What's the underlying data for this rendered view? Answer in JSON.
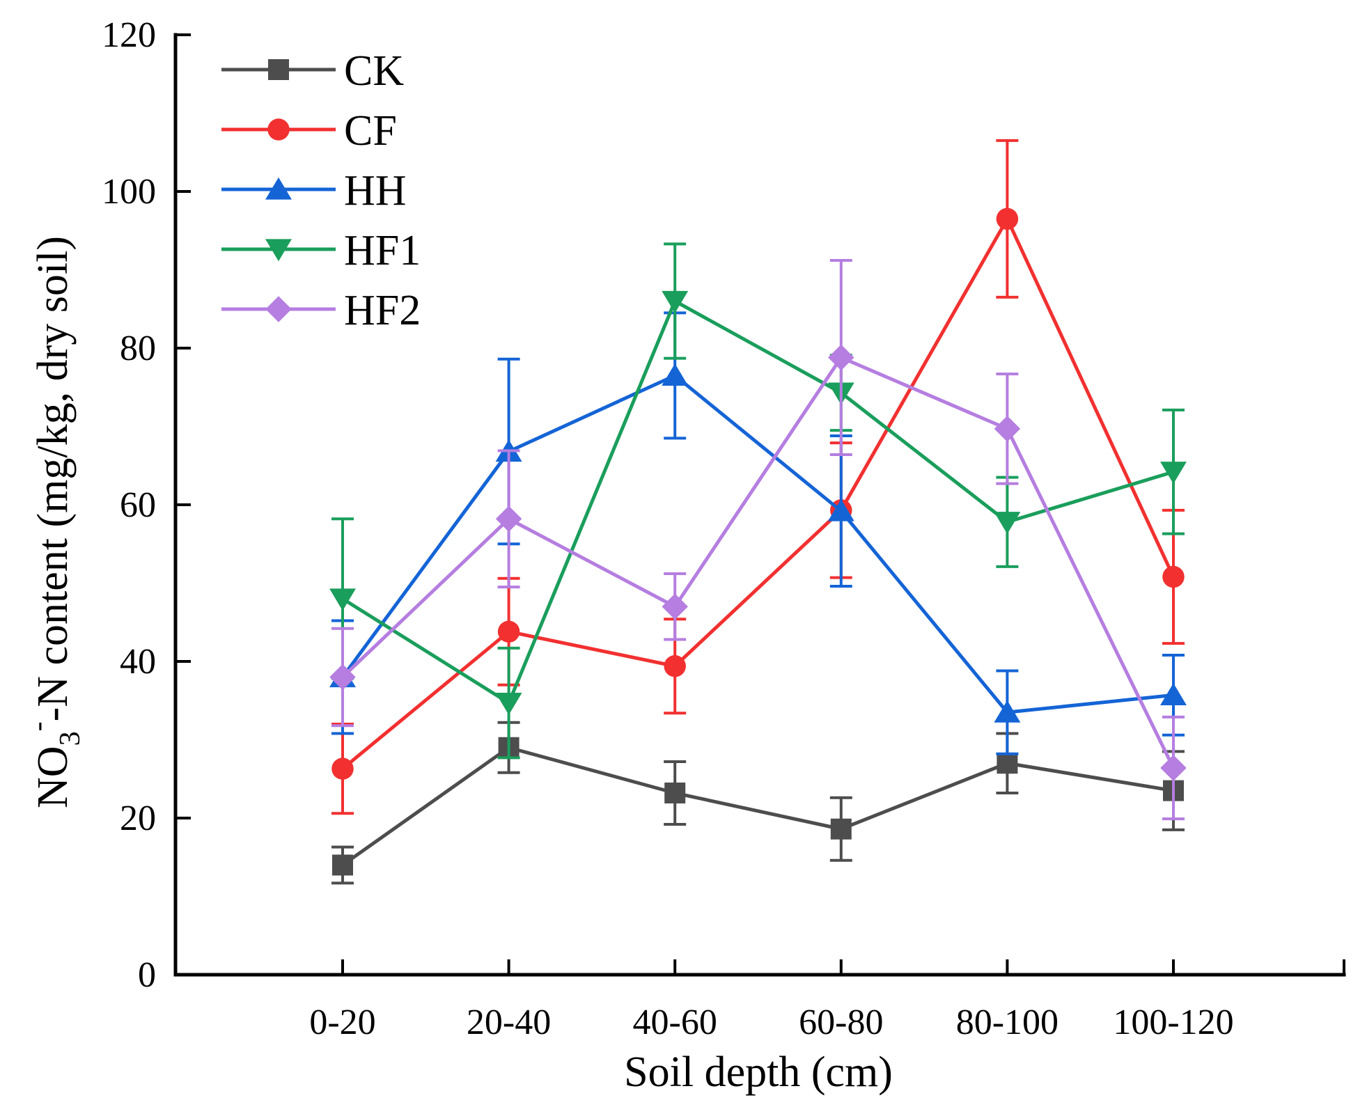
{
  "chart_data": {
    "type": "line",
    "title": "",
    "xlabel": "Soil depth (cm)",
    "ylabel": {
      "main": "NO",
      "subscript": "3",
      "superscript": "-",
      "rest": "-N content (mg/kg, dry soil)"
    },
    "categories": [
      "0-20",
      "20-40",
      "40-60",
      "60-80",
      "80-100",
      "100-120"
    ],
    "ylim": [
      0,
      120
    ],
    "yticks": [
      0,
      20,
      40,
      60,
      80,
      100,
      120
    ],
    "legend_position": "top-left",
    "series": [
      {
        "name": "CK",
        "color": "#4d4d4d",
        "marker": "square",
        "values": [
          14,
          29,
          23.2,
          18.6,
          27,
          23.5
        ],
        "errors": [
          2.3,
          3.2,
          4,
          4,
          3.8,
          5
        ]
      },
      {
        "name": "CF",
        "color": "#f23030",
        "marker": "circle",
        "values": [
          26.3,
          43.8,
          39.4,
          59.3,
          96.5,
          50.8
        ],
        "errors": [
          5.7,
          6.8,
          6,
          8.6,
          10,
          8.5
        ]
      },
      {
        "name": "HH",
        "color": "#1464d6",
        "marker": "triangle-up",
        "values": [
          38,
          66.8,
          76.5,
          59.2,
          33.5,
          35.7
        ],
        "errors": [
          7.2,
          11.8,
          8,
          9.6,
          5.3,
          5.1
        ]
      },
      {
        "name": "HF1",
        "color": "#1a9e5c",
        "marker": "triangle-down",
        "values": [
          48,
          34.7,
          86,
          74.3,
          57.8,
          64.2
        ],
        "errors": [
          10.2,
          7,
          7.3,
          4.8,
          5.7,
          7.9
        ]
      },
      {
        "name": "HF2",
        "color": "#b57ee0",
        "marker": "diamond",
        "values": [
          38,
          58.2,
          47,
          78.8,
          69.7,
          26.4
        ],
        "errors": [
          6.2,
          8.7,
          4.2,
          12.4,
          7,
          6.5
        ]
      }
    ]
  }
}
